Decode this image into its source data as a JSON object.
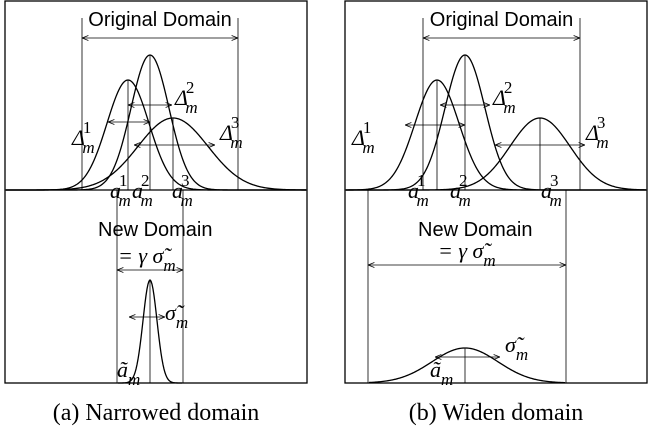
{
  "panels": [
    {
      "top_title": "Original Domain",
      "bottom_title": "New Domain",
      "delta_labels": [
        {
          "base": "Δ",
          "sub": "m",
          "sup": "1"
        },
        {
          "base": "Δ",
          "sub": "m",
          "sup": "2"
        },
        {
          "base": "Δ",
          "sub": "m",
          "sup": "3"
        }
      ],
      "a_labels": [
        {
          "base": "a",
          "sub": "m",
          "sup": "1"
        },
        {
          "base": "a",
          "sub": "m",
          "sup": "2"
        },
        {
          "base": "a",
          "sub": "m",
          "sup": "3"
        }
      ],
      "width_label": {
        "prefix": "= γ ",
        "base": "σ̃",
        "sub": "m"
      },
      "sigma_label": {
        "base": "σ̃",
        "sub": "m"
      },
      "center_label": {
        "base": "ã",
        "sub": "m"
      },
      "caption": "(a) Narrowed domain"
    },
    {
      "top_title": "Original Domain",
      "bottom_title": "New Domain",
      "delta_labels": [
        {
          "base": "Δ",
          "sub": "m",
          "sup": "1"
        },
        {
          "base": "Δ",
          "sub": "m",
          "sup": "2"
        },
        {
          "base": "Δ",
          "sub": "m",
          "sup": "3"
        }
      ],
      "a_labels": [
        {
          "base": "a",
          "sub": "m",
          "sup": "1"
        },
        {
          "base": "a",
          "sub": "m",
          "sup": "2"
        },
        {
          "base": "a",
          "sub": "m",
          "sup": "3"
        }
      ],
      "width_label": {
        "prefix": "= γ ",
        "base": "σ̃",
        "sub": "m"
      },
      "sigma_label": {
        "base": "σ̃",
        "sub": "m"
      },
      "center_label": {
        "base": "ã",
        "sub": "m"
      },
      "caption": "(b) Widen domain"
    }
  ]
}
